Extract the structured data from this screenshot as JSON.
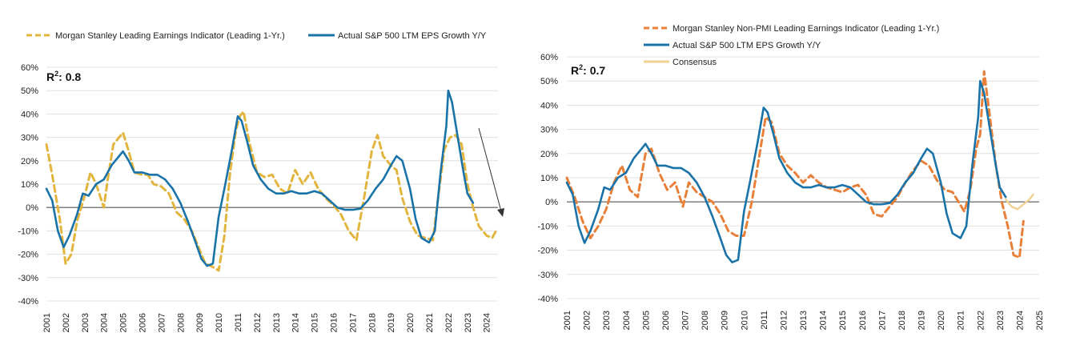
{
  "colors": {
    "ms_gold": "#E2B53E",
    "actual_blue": "#1A73A8",
    "ms_orange": "#E8803A",
    "consensus": "#F0D196",
    "grid": "#E0E0E0",
    "zero": "#555555",
    "arrow": "#333333"
  },
  "chart_data": [
    {
      "type": "line",
      "ylim": [
        -40,
        60
      ],
      "xlim": [
        2001,
        2024.6
      ],
      "y_ticks": [
        "-40%",
        "-30%",
        "-20%",
        "-10%",
        "0%",
        "10%",
        "20%",
        "30%",
        "40%",
        "50%",
        "60%"
      ],
      "x_ticks": [
        "2001",
        "2002",
        "2003",
        "2004",
        "2005",
        "2006",
        "2007",
        "2008",
        "2009",
        "2010",
        "2011",
        "2012",
        "2013",
        "2014",
        "2015",
        "2016",
        "2017",
        "2018",
        "2019",
        "2020",
        "2021",
        "2022",
        "2023",
        "2024"
      ],
      "annotation_prefix": "R",
      "annotation_sup": "2",
      "annotation_value": ": 0.8",
      "legend_position": "top",
      "series": [
        {
          "name": "Morgan Stanley Leading Earnings Indicator (Leading 1-Yr.)",
          "style": "dashed",
          "x": [
            2001.0,
            2001.3,
            2001.7,
            2002.0,
            2002.3,
            2002.6,
            2003.0,
            2003.3,
            2003.6,
            2004.0,
            2004.2,
            2004.5,
            2004.8,
            2005.0,
            2005.3,
            2005.6,
            2006.0,
            2006.3,
            2006.6,
            2007.0,
            2007.4,
            2007.8,
            2008.2,
            2008.6,
            2009.0,
            2009.3,
            2009.6,
            2010.0,
            2010.3,
            2010.6,
            2010.9,
            2011.1,
            2011.3,
            2011.6,
            2012.0,
            2012.4,
            2012.8,
            2013.2,
            2013.6,
            2014.0,
            2014.4,
            2014.8,
            2015.2,
            2015.6,
            2016.0,
            2016.4,
            2016.8,
            2017.2,
            2017.6,
            2018.0,
            2018.3,
            2018.6,
            2019.0,
            2019.3,
            2019.6,
            2020.0,
            2020.4,
            2020.8,
            2021.2,
            2021.5,
            2021.8,
            2022.1,
            2022.4,
            2022.7,
            2023.0,
            2023.3,
            2023.6,
            2024.0,
            2024.3,
            2024.5
          ],
          "y": [
            27,
            14,
            -5,
            -24,
            -20,
            -6,
            5,
            15,
            10,
            0,
            12,
            27,
            30,
            32,
            24,
            15,
            14,
            14,
            10,
            9,
            6,
            -2,
            -5,
            -10,
            -18,
            -24,
            -25,
            -27,
            -12,
            15,
            33,
            39,
            41,
            28,
            15,
            13,
            14,
            8,
            6,
            16,
            10,
            15,
            8,
            4,
            1,
            -3,
            -10,
            -14,
            4,
            24,
            31,
            22,
            18,
            16,
            4,
            -6,
            -12,
            -13,
            -14,
            6,
            25,
            30,
            31,
            27,
            10,
            0,
            -8,
            -12,
            -13,
            -10
          ]
        },
        {
          "name": "Actual S&P 500 LTM EPS Growth Y/Y",
          "style": "solid",
          "x": [
            2001.0,
            2001.3,
            2001.6,
            2001.9,
            2002.2,
            2002.6,
            2002.9,
            2003.2,
            2003.6,
            2004.0,
            2004.4,
            2004.8,
            2005.0,
            2005.3,
            2005.6,
            2006.0,
            2006.4,
            2006.8,
            2007.2,
            2007.6,
            2008.0,
            2008.4,
            2008.8,
            2009.1,
            2009.4,
            2009.7,
            2010.0,
            2010.3,
            2010.7,
            2011.0,
            2011.2,
            2011.5,
            2011.8,
            2012.2,
            2012.6,
            2013.0,
            2013.4,
            2013.8,
            2014.2,
            2014.6,
            2015.0,
            2015.4,
            2015.8,
            2016.2,
            2016.6,
            2017.0,
            2017.4,
            2017.8,
            2018.2,
            2018.6,
            2019.0,
            2019.3,
            2019.6,
            2020.0,
            2020.3,
            2020.6,
            2021.0,
            2021.3,
            2021.6,
            2021.9,
            2022.0,
            2022.2,
            2022.5,
            2022.8,
            2023.0,
            2023.3
          ],
          "y": [
            8,
            3,
            -10,
            -17,
            -12,
            -3,
            6,
            5,
            10,
            12,
            18,
            22,
            24,
            20,
            15,
            15,
            14,
            14,
            12,
            8,
            2,
            -6,
            -15,
            -22,
            -25,
            -24,
            -4,
            8,
            25,
            39,
            37,
            28,
            18,
            12,
            8,
            6,
            6,
            7,
            6,
            6,
            7,
            6,
            3,
            0,
            -1,
            -1,
            -0.5,
            3,
            8,
            12,
            18,
            22,
            20,
            8,
            -5,
            -13,
            -15,
            -10,
            15,
            35,
            50,
            45,
            30,
            15,
            6,
            2
          ]
        }
      ]
    },
    {
      "type": "line",
      "ylim": [
        -40,
        60
      ],
      "xlim": [
        2001,
        2025
      ],
      "y_ticks": [
        "-40%",
        "-30%",
        "-20%",
        "-10%",
        "0%",
        "10%",
        "20%",
        "30%",
        "40%",
        "50%",
        "60%"
      ],
      "x_ticks": [
        "2001",
        "2002",
        "2003",
        "2004",
        "2005",
        "2006",
        "2007",
        "2008",
        "2009",
        "2010",
        "2011",
        "2012",
        "2013",
        "2014",
        "2015",
        "2016",
        "2017",
        "2018",
        "2019",
        "2020",
        "2021",
        "2022",
        "2023",
        "2024",
        "2025"
      ],
      "annotation_prefix": "R",
      "annotation_sup": "2",
      "annotation_value": ": 0.7",
      "legend_position": "top",
      "series": [
        {
          "name": "Morgan Stanley Non-PMI Leading Earnings Indicator (Leading 1-Yr.)",
          "style": "dashed",
          "x": [
            2001.0,
            2001.4,
            2001.8,
            2002.2,
            2002.6,
            2003.0,
            2003.4,
            2003.8,
            2004.2,
            2004.6,
            2005.0,
            2005.3,
            2005.7,
            2006.1,
            2006.5,
            2006.9,
            2007.2,
            2007.6,
            2008.0,
            2008.4,
            2008.8,
            2009.2,
            2009.6,
            2010.0,
            2010.4,
            2010.8,
            2011.1,
            2011.4,
            2011.8,
            2012.2,
            2012.6,
            2013.0,
            2013.4,
            2013.8,
            2014.2,
            2014.6,
            2015.0,
            2015.4,
            2015.8,
            2016.2,
            2016.6,
            2017.0,
            2017.4,
            2017.8,
            2018.2,
            2018.6,
            2019.0,
            2019.4,
            2019.8,
            2020.2,
            2020.6,
            2020.9,
            2021.2,
            2021.5,
            2021.8,
            2022.0,
            2022.2,
            2022.5,
            2022.8,
            2023.1,
            2023.4,
            2023.7,
            2024.0,
            2024.2
          ],
          "y": [
            10,
            2,
            -8,
            -15,
            -10,
            -3,
            8,
            15,
            5,
            2,
            20,
            22,
            12,
            5,
            8,
            -2,
            8,
            4,
            2,
            0,
            -5,
            -12,
            -14,
            -14,
            0,
            20,
            35,
            33,
            20,
            15,
            12,
            8,
            11,
            8,
            6,
            5,
            4,
            6,
            7,
            3,
            -5,
            -6,
            -2,
            2,
            8,
            13,
            17,
            15,
            9,
            5,
            4,
            0,
            -4,
            5,
            22,
            28,
            54,
            35,
            15,
            0,
            -10,
            -22,
            -23,
            -8
          ]
        },
        {
          "name": "Actual S&P 500 LTM EPS Growth Y/Y",
          "style": "solid",
          "x": [
            2001.0,
            2001.3,
            2001.6,
            2001.9,
            2002.2,
            2002.6,
            2002.9,
            2003.2,
            2003.6,
            2004.0,
            2004.4,
            2004.8,
            2005.0,
            2005.3,
            2005.6,
            2006.0,
            2006.4,
            2006.8,
            2007.2,
            2007.6,
            2008.0,
            2008.4,
            2008.8,
            2009.1,
            2009.4,
            2009.7,
            2010.0,
            2010.3,
            2010.7,
            2011.0,
            2011.2,
            2011.5,
            2011.8,
            2012.2,
            2012.6,
            2013.0,
            2013.4,
            2013.8,
            2014.2,
            2014.6,
            2015.0,
            2015.4,
            2015.8,
            2016.2,
            2016.6,
            2017.0,
            2017.4,
            2017.8,
            2018.2,
            2018.6,
            2019.0,
            2019.3,
            2019.6,
            2020.0,
            2020.3,
            2020.6,
            2021.0,
            2021.3,
            2021.6,
            2021.9,
            2022.0,
            2022.2,
            2022.5,
            2022.8,
            2023.0,
            2023.3
          ],
          "y": [
            8,
            3,
            -10,
            -17,
            -12,
            -3,
            6,
            5,
            10,
            12,
            18,
            22,
            24,
            20,
            15,
            15,
            14,
            14,
            12,
            8,
            2,
            -6,
            -15,
            -22,
            -25,
            -24,
            -4,
            8,
            25,
            39,
            37,
            28,
            18,
            12,
            8,
            6,
            6,
            7,
            6,
            6,
            7,
            6,
            3,
            0,
            -1,
            -1,
            -0.5,
            3,
            8,
            12,
            18,
            22,
            20,
            8,
            -5,
            -13,
            -15,
            -10,
            15,
            35,
            50,
            45,
            30,
            15,
            6,
            2
          ]
        },
        {
          "name": "Consensus",
          "style": "solid-light",
          "x": [
            2023.3,
            2023.6,
            2023.9,
            2024.2,
            2024.5,
            2024.7
          ],
          "y": [
            1,
            -2,
            -3,
            -1,
            1,
            3
          ]
        }
      ]
    }
  ]
}
